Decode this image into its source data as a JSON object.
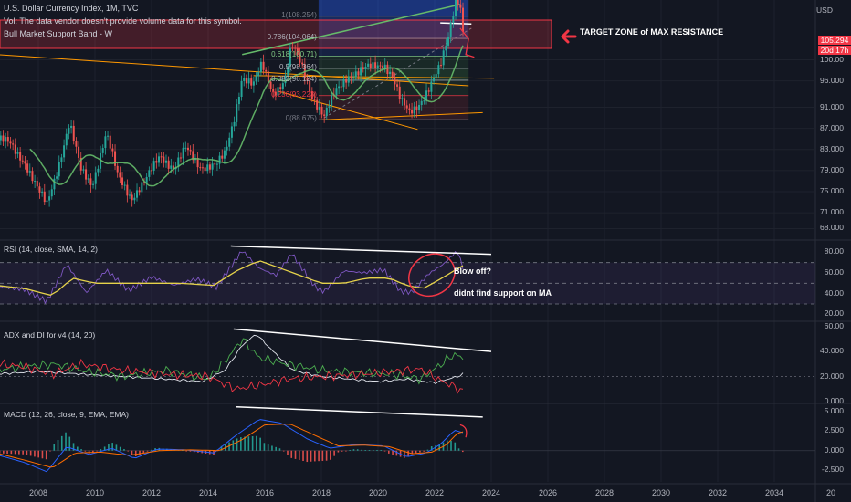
{
  "header": {
    "symbol_line": "U.S. Dollar Currency Index, 1M, TVC",
    "volume_line": "Vol: The data vendor doesn't provide volume data for this symbol.",
    "band_line": "Bull Market Support Band - W",
    "currency": "USD"
  },
  "price_label": {
    "value": "105.294",
    "countdown": "20d 17h",
    "color": "#f23645"
  },
  "annotations": {
    "target_zone": "TARGET ZONE of MAX RESISTANCE",
    "blow_off": "Blow off?",
    "no_support": "didnt find support on MA"
  },
  "fib_levels": [
    {
      "label": "1(108.254)",
      "value": 108.254,
      "color": "#787b86"
    },
    {
      "label": "0.786(104.064)",
      "value": 104.064,
      "color": "#b2b5be"
    },
    {
      "label": "0.618(100.71)",
      "value": 100.71,
      "color": "#81c784"
    },
    {
      "label": "0.5(98.364)",
      "value": 98.364,
      "color": "#b2b5be"
    },
    {
      "label": "0.382(96.124)",
      "value": 96.124,
      "color": "#b2b5be"
    },
    {
      "label": "0.236(93.223)",
      "value": 93.223,
      "color": "#f23645"
    },
    {
      "label": "0(88.675)",
      "value": 88.675,
      "color": "#787b86"
    }
  ],
  "panels": {
    "rsi": {
      "title": "RSI (14, close, SMA, 14, 2)",
      "ticks": [
        "80.00",
        "60.00",
        "40.00",
        "20.00"
      ]
    },
    "adx": {
      "title": "ADX and DI for v4 (14, 20)",
      "ticks": [
        "60.00",
        "40.000",
        "20.000",
        "0.000"
      ]
    },
    "macd": {
      "title": "MACD (12, 26, close, 9, EMA, EMA)",
      "ticks": [
        "5.000",
        "2.500",
        "0.000",
        "-2.500"
      ]
    }
  },
  "chart_data": [
    {
      "type": "candlestick",
      "title": "U.S. Dollar Currency Index, 1M, TVC",
      "x_ticks": [
        "2008",
        "2010",
        "2012",
        "2014",
        "2016",
        "2018",
        "2020",
        "2022",
        "2024",
        "2026",
        "2028",
        "2030",
        "2032",
        "2034",
        "20"
      ],
      "y_ticks": [
        100.0,
        96.0,
        91.0,
        87.0,
        83.0,
        79.0,
        75.0,
        71.0,
        68.0
      ],
      "last_price": 105.294,
      "xlim": [
        2006.5,
        2036.0
      ],
      "ylim": [
        66.0,
        111.0
      ],
      "series": [
        {
          "values": [
            [
              2006.5,
              85.0
            ],
            [
              2007.0,
              84.0
            ],
            [
              2007.5,
              81.0
            ],
            [
              2008.0,
              75.0
            ],
            [
              2008.3,
              72.5
            ],
            [
              2008.7,
              80.0
            ],
            [
              2009.1,
              88.0
            ],
            [
              2009.5,
              79.0
            ],
            [
              2009.9,
              76.5
            ],
            [
              2010.4,
              86.0
            ],
            [
              2010.8,
              78.0
            ],
            [
              2011.3,
              74.0
            ],
            [
              2011.8,
              77.0
            ],
            [
              2012.3,
              82.0
            ],
            [
              2012.8,
              79.5
            ],
            [
              2013.2,
              83.0
            ],
            [
              2013.7,
              80.0
            ],
            [
              2014.3,
              80.0
            ],
            [
              2014.6,
              82.0
            ],
            [
              2014.9,
              88.5
            ],
            [
              2015.2,
              97.0
            ],
            [
              2015.6,
              95.0
            ],
            [
              2015.9,
              99.0
            ],
            [
              2016.3,
              94.0
            ],
            [
              2016.7,
              96.0
            ],
            [
              2016.95,
              102.5
            ],
            [
              2017.3,
              99.0
            ],
            [
              2017.7,
              93.0
            ],
            [
              2018.1,
              89.0
            ],
            [
              2018.5,
              94.0
            ],
            [
              2018.9,
              97.0
            ],
            [
              2019.3,
              97.5
            ],
            [
              2019.7,
              98.5
            ],
            [
              2020.2,
              99.5
            ],
            [
              2020.5,
              97.0
            ],
            [
              2020.8,
              92.0
            ],
            [
              2021.1,
              90.0
            ],
            [
              2021.4,
              91.5
            ],
            [
              2021.8,
              94.5
            ],
            [
              2022.2,
              98.5
            ],
            [
              2022.5,
              105.0
            ],
            [
              2022.75,
              112.0
            ],
            [
              2022.9,
              111.0
            ],
            [
              2023.0,
              105.3
            ]
          ]
        }
      ]
    },
    {
      "type": "line",
      "title": "RSI (14, close, SMA, 14, 2)",
      "ylim": [
        15,
        90
      ],
      "series": [
        {
          "name": "RSI",
          "color": "#7e57c2",
          "values": [
            [
              2006.5,
              47
            ],
            [
              2007.5,
              44
            ],
            [
              2008.3,
              32
            ],
            [
              2009.0,
              68
            ],
            [
              2009.7,
              40
            ],
            [
              2010.4,
              62
            ],
            [
              2011.2,
              42
            ],
            [
              2012.0,
              55
            ],
            [
              2012.8,
              47
            ],
            [
              2013.6,
              53
            ],
            [
              2014.3,
              45
            ],
            [
              2015.2,
              80
            ],
            [
              2015.8,
              63
            ],
            [
              2016.4,
              56
            ],
            [
              2016.95,
              77
            ],
            [
              2017.8,
              44
            ],
            [
              2018.1,
              40
            ],
            [
              2018.8,
              60
            ],
            [
              2019.5,
              58
            ],
            [
              2020.2,
              61
            ],
            [
              2020.8,
              40
            ],
            [
              2021.2,
              39
            ],
            [
              2021.8,
              57
            ],
            [
              2022.3,
              66
            ],
            [
              2022.8,
              79
            ],
            [
              2023.0,
              63
            ]
          ]
        },
        {
          "name": "RSI-based MA",
          "color": "#e6d34a",
          "values": [
            [
              2006.5,
              48
            ],
            [
              2007.5,
              45
            ],
            [
              2008.5,
              38
            ],
            [
              2009.2,
              55
            ],
            [
              2010.0,
              50
            ],
            [
              2011.0,
              50
            ],
            [
              2012.0,
              50
            ],
            [
              2013.0,
              50
            ],
            [
              2014.2,
              48
            ],
            [
              2015.0,
              62
            ],
            [
              2015.8,
              72
            ],
            [
              2016.5,
              65
            ],
            [
              2017.2,
              58
            ],
            [
              2018.0,
              50
            ],
            [
              2018.8,
              50
            ],
            [
              2019.6,
              55
            ],
            [
              2020.4,
              55
            ],
            [
              2021.0,
              48
            ],
            [
              2021.6,
              45
            ],
            [
              2022.2,
              54
            ],
            [
              2022.8,
              64
            ],
            [
              2023.0,
              67
            ]
          ]
        }
      ]
    },
    {
      "type": "line",
      "title": "ADX and DI for v4 (14, 20)",
      "ylim": [
        0,
        62
      ],
      "series": [
        {
          "name": "ADX",
          "color": "#e0e3eb",
          "values": [
            [
              2006.5,
              22
            ],
            [
              2008.0,
              24
            ],
            [
              2009.5,
              22
            ],
            [
              2011.0,
              20
            ],
            [
              2012.5,
              18
            ],
            [
              2013.8,
              16
            ],
            [
              2014.6,
              25
            ],
            [
              2015.2,
              45
            ],
            [
              2015.7,
              54
            ],
            [
              2016.3,
              40
            ],
            [
              2017.0,
              25
            ],
            [
              2018.0,
              20
            ],
            [
              2019.0,
              18
            ],
            [
              2020.0,
              16
            ],
            [
              2021.0,
              18
            ],
            [
              2022.0,
              15
            ],
            [
              2022.8,
              20
            ],
            [
              2023.0,
              22
            ]
          ]
        },
        {
          "name": "+DI",
          "color": "#4caf50",
          "values": [
            [
              2006.5,
              25
            ],
            [
              2007.5,
              28
            ],
            [
              2008.6,
              30
            ],
            [
              2009.5,
              25
            ],
            [
              2011.0,
              20
            ],
            [
              2012.5,
              25
            ],
            [
              2014.0,
              18
            ],
            [
              2014.7,
              35
            ],
            [
              2015.2,
              50
            ],
            [
              2015.8,
              35
            ],
            [
              2016.8,
              30
            ],
            [
              2018.0,
              25
            ],
            [
              2019.5,
              23
            ],
            [
              2020.5,
              22
            ],
            [
              2021.5,
              18
            ],
            [
              2022.0,
              26
            ],
            [
              2022.7,
              38
            ],
            [
              2023.0,
              34
            ]
          ]
        },
        {
          "name": "-DI",
          "color": "#f23645",
          "values": [
            [
              2006.5,
              30
            ],
            [
              2007.5,
              28
            ],
            [
              2008.5,
              22
            ],
            [
              2009.5,
              30
            ],
            [
              2011.0,
              25
            ],
            [
              2012.5,
              22
            ],
            [
              2014.0,
              20
            ],
            [
              2015.0,
              10
            ],
            [
              2016.0,
              14
            ],
            [
              2016.8,
              18
            ],
            [
              2018.0,
              20
            ],
            [
              2019.5,
              22
            ],
            [
              2020.5,
              24
            ],
            [
              2021.5,
              26
            ],
            [
              2022.2,
              17
            ],
            [
              2022.7,
              12
            ],
            [
              2023.0,
              8
            ]
          ]
        }
      ]
    },
    {
      "type": "bar",
      "title": "MACD (12, 26, close, 9, EMA, EMA)",
      "ylim": [
        -4.0,
        5.8
      ],
      "series": [
        {
          "name": "MACD",
          "color": "#2962ff",
          "values": [
            [
              2006.5,
              -0.5
            ],
            [
              2007.5,
              -1.5
            ],
            [
              2008.3,
              -2.7
            ],
            [
              2009.0,
              0.5
            ],
            [
              2009.8,
              -0.5
            ],
            [
              2010.6,
              0.3
            ],
            [
              2011.4,
              -1.0
            ],
            [
              2012.2,
              0.2
            ],
            [
              2013.2,
              0.1
            ],
            [
              2014.2,
              -0.3
            ],
            [
              2015.0,
              2.0
            ],
            [
              2015.8,
              4.0
            ],
            [
              2016.6,
              3.5
            ],
            [
              2017.5,
              1.5
            ],
            [
              2018.3,
              0.3
            ],
            [
              2019.2,
              0.8
            ],
            [
              2020.2,
              0.6
            ],
            [
              2021.0,
              -0.8
            ],
            [
              2021.7,
              -0.3
            ],
            [
              2022.2,
              0.8
            ],
            [
              2022.7,
              2.6
            ],
            [
              2023.0,
              2.3
            ]
          ]
        },
        {
          "name": "Signal",
          "color": "#ff6d00",
          "values": [
            [
              2006.5,
              -0.3
            ],
            [
              2007.5,
              -1.2
            ],
            [
              2008.5,
              -2.2
            ],
            [
              2009.3,
              -0.3
            ],
            [
              2010.2,
              -0.2
            ],
            [
              2011.2,
              -0.6
            ],
            [
              2012.3,
              0.0
            ],
            [
              2013.4,
              0.1
            ],
            [
              2014.4,
              0.0
            ],
            [
              2015.2,
              1.4
            ],
            [
              2016.0,
              3.3
            ],
            [
              2016.9,
              3.4
            ],
            [
              2017.8,
              1.9
            ],
            [
              2018.6,
              0.6
            ],
            [
              2019.5,
              0.7
            ],
            [
              2020.4,
              0.5
            ],
            [
              2021.2,
              -0.4
            ],
            [
              2021.9,
              -0.2
            ],
            [
              2022.4,
              0.7
            ],
            [
              2022.8,
              2.2
            ],
            [
              2023.0,
              2.4
            ]
          ]
        }
      ]
    }
  ]
}
